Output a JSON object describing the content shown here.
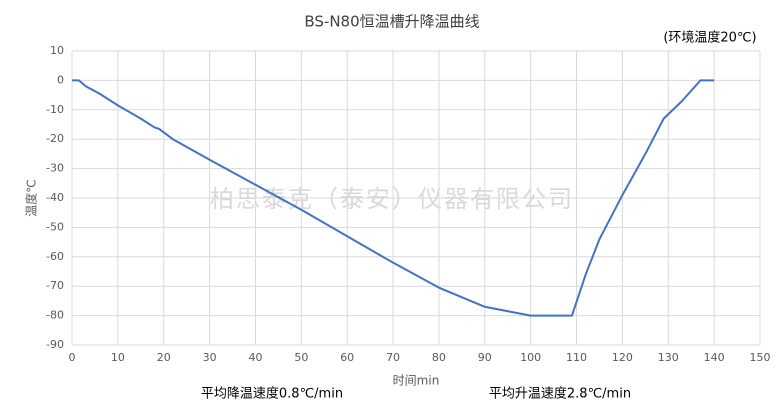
{
  "chart_data": {
    "type": "line",
    "title": "BS-N80恒温槽升降温曲线",
    "x_label": "时间min",
    "y_label": "温度℃",
    "watermark": "柏思泰克（泰安）仪器有限公司",
    "annotations": [
      "(环境温度20℃)",
      "平均降温速度0.8℃/min",
      "平均升温速度2.8℃/min"
    ],
    "x": [
      0,
      1.5,
      3,
      6,
      10,
      15,
      18,
      19,
      22,
      30,
      40,
      50,
      60,
      70,
      80,
      90,
      100,
      109,
      112,
      115,
      120,
      125,
      129,
      133,
      137,
      140
    ],
    "values": [
      0,
      0,
      -2,
      -4.5,
      -8.5,
      -13,
      -16,
      -16.5,
      -20,
      -27,
      -35.5,
      -44,
      -53,
      -62,
      -70.5,
      -77,
      -80,
      -80,
      -66,
      -54,
      -39,
      -25,
      -13,
      -7,
      0,
      0
    ],
    "color": "#4472c4",
    "xlim": [
      0,
      150
    ],
    "xticks": [
      0,
      10,
      20,
      30,
      40,
      50,
      60,
      70,
      80,
      90,
      100,
      110,
      120,
      130,
      140,
      150
    ],
    "ylim": [
      -90,
      10
    ],
    "yticks": [
      -90,
      -80,
      -70,
      -60,
      -50,
      -40,
      -30,
      -20,
      -10,
      0,
      10
    ],
    "grid": true
  }
}
